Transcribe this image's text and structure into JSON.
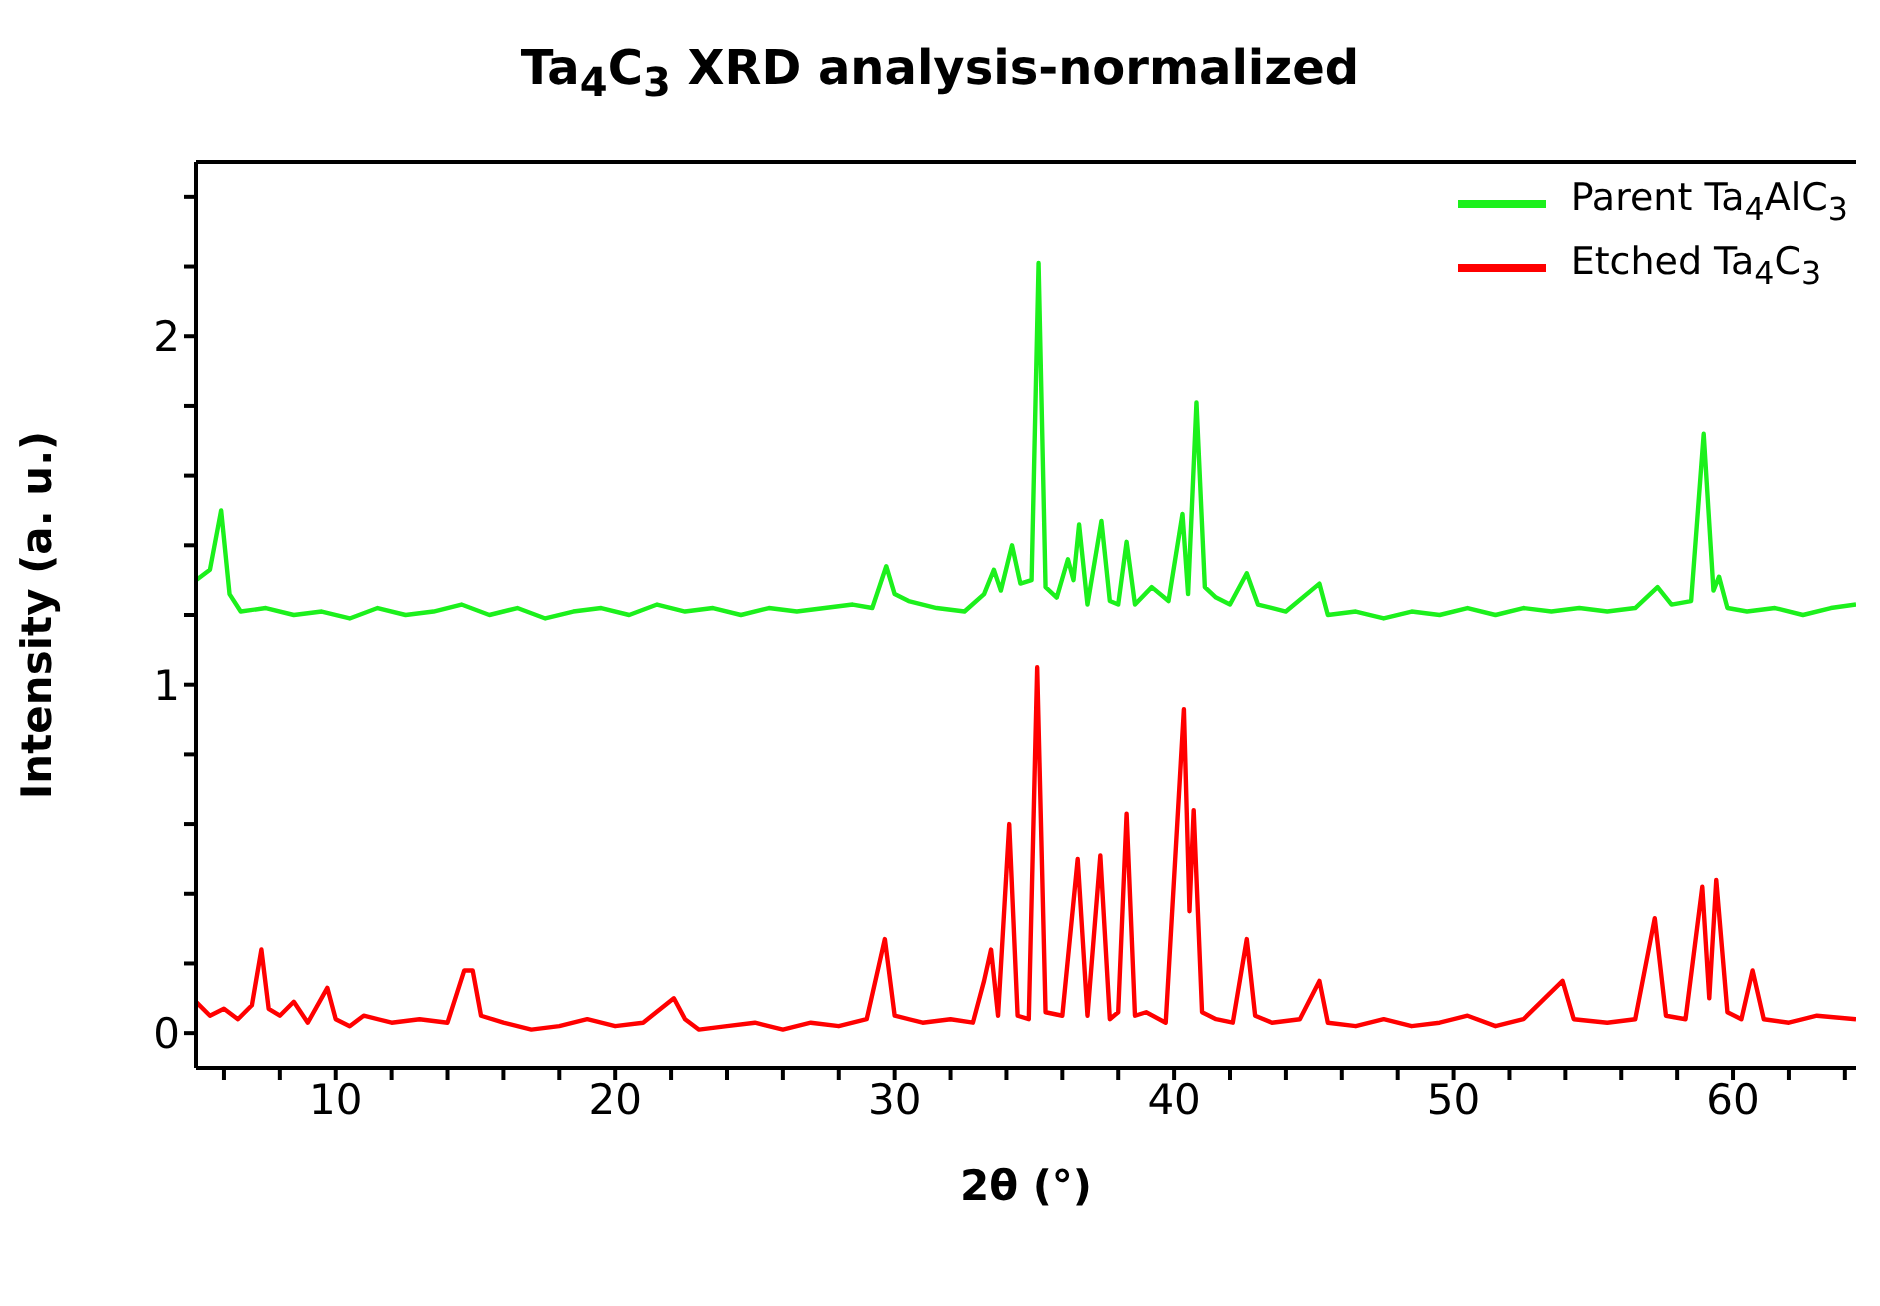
{
  "chart_data": {
    "type": "line",
    "title": "Ta$_{4}$C$_{3}$ XRD analysis-normalized",
    "xlabel": "2θ (°)",
    "ylabel": "Intensity (a. u.)",
    "xlim": [
      5,
      64.4
    ],
    "xticks": [
      {
        "value": 6,
        "label": null
      },
      {
        "value": 8,
        "label": null
      },
      10,
      {
        "value": 12,
        "label": null
      },
      {
        "value": 14,
        "label": null
      },
      {
        "value": 16,
        "label": null
      },
      {
        "value": 18,
        "label": null
      },
      20,
      {
        "value": 22,
        "label": null
      },
      {
        "value": 24,
        "label": null
      },
      {
        "value": 26,
        "label": null
      },
      {
        "value": 28,
        "label": null
      },
      30,
      {
        "value": 32,
        "label": null
      },
      {
        "value": 34,
        "label": null
      },
      {
        "value": 36,
        "label": null
      },
      {
        "value": 38,
        "label": null
      },
      40,
      {
        "value": 42,
        "label": null
      },
      {
        "value": 44,
        "label": null
      },
      {
        "value": 46,
        "label": null
      },
      {
        "value": 48,
        "label": null
      },
      50,
      {
        "value": 52,
        "label": null
      },
      {
        "value": 54,
        "label": null
      },
      {
        "value": 56,
        "label": null
      },
      {
        "value": 58,
        "label": null
      },
      60,
      {
        "value": 62,
        "label": null
      },
      {
        "value": 64,
        "label": null
      }
    ],
    "ylim": [
      -0.1,
      2.5
    ],
    "yticks": [
      0,
      {
        "value": 0.2,
        "label": null
      },
      {
        "value": 0.4,
        "label": null
      },
      {
        "value": 0.6,
        "label": null
      },
      {
        "value": 0.8,
        "label": null
      },
      1,
      {
        "value": 1.2,
        "label": null
      },
      {
        "value": 1.4,
        "label": null
      },
      {
        "value": 1.6,
        "label": null
      },
      {
        "value": 1.8,
        "label": null
      },
      2,
      {
        "value": 2.2,
        "label": null
      },
      {
        "value": 2.4,
        "label": null
      }
    ],
    "grid": false,
    "legend": "top right",
    "series": [
      {
        "name": "Parent Ta$_{4}$AlC$_{3}$",
        "color": "#1cf01c",
        "x": [
          5.0,
          5.5,
          5.9,
          6.2,
          6.6,
          7.5,
          8.5,
          9.5,
          10.5,
          11.5,
          12.5,
          13.5,
          14.5,
          15.5,
          16.5,
          17.5,
          18.5,
          19.5,
          20.5,
          21.5,
          22.5,
          23.5,
          24.5,
          25.5,
          26.5,
          27.5,
          28.5,
          29.2,
          29.7,
          30.0,
          30.5,
          31.5,
          32.5,
          33.2,
          33.55,
          33.8,
          34.2,
          34.5,
          34.9,
          35.15,
          35.4,
          35.8,
          36.2,
          36.4,
          36.6,
          36.9,
          37.4,
          37.7,
          38.0,
          38.3,
          38.6,
          39.2,
          39.8,
          40.3,
          40.5,
          40.8,
          41.1,
          41.5,
          42.0,
          42.6,
          43.0,
          44.0,
          45.2,
          45.5,
          46.5,
          47.5,
          48.5,
          49.5,
          50.5,
          51.5,
          52.5,
          53.5,
          54.5,
          55.5,
          56.5,
          57.3,
          57.8,
          58.5,
          58.95,
          59.3,
          59.5,
          59.8,
          60.5,
          61.5,
          62.5,
          63.5,
          64.4
        ],
        "values": [
          1.3,
          1.33,
          1.5,
          1.26,
          1.21,
          1.22,
          1.2,
          1.21,
          1.19,
          1.22,
          1.2,
          1.21,
          1.23,
          1.2,
          1.22,
          1.19,
          1.21,
          1.22,
          1.2,
          1.23,
          1.21,
          1.22,
          1.2,
          1.22,
          1.21,
          1.22,
          1.23,
          1.22,
          1.34,
          1.26,
          1.24,
          1.22,
          1.21,
          1.26,
          1.33,
          1.27,
          1.4,
          1.29,
          1.3,
          2.21,
          1.28,
          1.25,
          1.36,
          1.3,
          1.46,
          1.23,
          1.47,
          1.24,
          1.23,
          1.41,
          1.23,
          1.28,
          1.24,
          1.49,
          1.26,
          1.81,
          1.28,
          1.25,
          1.23,
          1.32,
          1.23,
          1.21,
          1.29,
          1.2,
          1.21,
          1.19,
          1.21,
          1.2,
          1.22,
          1.2,
          1.22,
          1.21,
          1.22,
          1.21,
          1.22,
          1.28,
          1.23,
          1.24,
          1.72,
          1.27,
          1.31,
          1.22,
          1.21,
          1.22,
          1.2,
          1.22,
          1.23
        ]
      },
      {
        "name": "Etched Ta$_{4}$C$_{3}$",
        "color": "#ff0000",
        "x": [
          5.0,
          5.5,
          6.0,
          6.5,
          7.0,
          7.34,
          7.6,
          8.0,
          8.5,
          9.0,
          9.7,
          10.0,
          10.5,
          11.0,
          12.0,
          13.0,
          14.0,
          14.6,
          14.9,
          15.2,
          16.0,
          17.0,
          18.0,
          19.0,
          20.0,
          21.0,
          22.1,
          22.5,
          23.0,
          24.0,
          25.0,
          26.0,
          27.0,
          28.0,
          29.0,
          29.65,
          30.0,
          31.0,
          32.0,
          32.8,
          33.2,
          33.45,
          33.7,
          34.1,
          34.4,
          34.8,
          35.1,
          35.4,
          36.0,
          36.55,
          36.9,
          37.36,
          37.7,
          38.0,
          38.3,
          38.6,
          39.0,
          39.7,
          40.35,
          40.55,
          40.7,
          41.0,
          41.5,
          42.1,
          42.6,
          42.9,
          43.5,
          44.5,
          45.2,
          45.5,
          46.5,
          47.5,
          48.5,
          49.5,
          50.5,
          51.5,
          52.5,
          53.9,
          54.3,
          55.5,
          56.5,
          57.2,
          57.6,
          58.3,
          58.9,
          59.15,
          59.4,
          59.8,
          60.3,
          60.7,
          61.1,
          62.0,
          63.0,
          64.4
        ],
        "values": [
          0.09,
          0.05,
          0.07,
          0.04,
          0.08,
          0.24,
          0.07,
          0.05,
          0.09,
          0.03,
          0.13,
          0.04,
          0.02,
          0.05,
          0.03,
          0.04,
          0.03,
          0.18,
          0.18,
          0.05,
          0.03,
          0.01,
          0.02,
          0.04,
          0.02,
          0.03,
          0.1,
          0.04,
          0.01,
          0.02,
          0.03,
          0.01,
          0.03,
          0.02,
          0.04,
          0.27,
          0.05,
          0.03,
          0.04,
          0.03,
          0.15,
          0.24,
          0.05,
          0.6,
          0.05,
          0.04,
          1.05,
          0.06,
          0.05,
          0.5,
          0.05,
          0.51,
          0.04,
          0.06,
          0.63,
          0.05,
          0.06,
          0.03,
          0.93,
          0.35,
          0.64,
          0.06,
          0.04,
          0.03,
          0.27,
          0.05,
          0.03,
          0.04,
          0.15,
          0.03,
          0.02,
          0.04,
          0.02,
          0.03,
          0.05,
          0.02,
          0.04,
          0.15,
          0.04,
          0.03,
          0.04,
          0.33,
          0.05,
          0.04,
          0.42,
          0.1,
          0.44,
          0.06,
          0.04,
          0.18,
          0.04,
          0.03,
          0.05,
          0.04
        ]
      }
    ]
  }
}
